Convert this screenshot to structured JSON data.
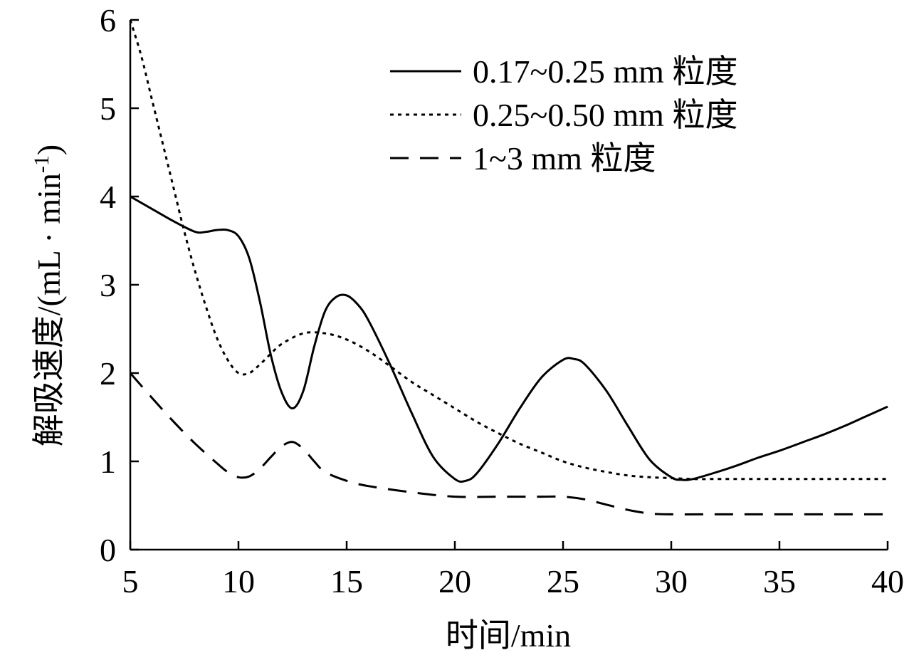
{
  "chart_data": {
    "type": "line",
    "xlabel": "时间/min",
    "ylabel_main": "解吸速度/(mL · min",
    "ylabel_sup": "-1",
    "ylabel_close": ")",
    "xlim": [
      5,
      40
    ],
    "ylim": [
      0,
      6
    ],
    "xticks": [
      5,
      10,
      15,
      20,
      25,
      30,
      35,
      40
    ],
    "yticks": [
      0,
      1,
      2,
      3,
      4,
      5,
      6
    ],
    "grid": false,
    "legend_position": "top-right",
    "series": [
      {
        "name": "0.17~0.25 mm 粒度",
        "style": "solid",
        "x": [
          5,
          6,
          7,
          8,
          8.5,
          9,
          9.5,
          10,
          10.5,
          11,
          11.5,
          12,
          12.5,
          13,
          13.5,
          14,
          14.5,
          15,
          15.5,
          16,
          17,
          18,
          19,
          20,
          20.5,
          21,
          22,
          23,
          24,
          25,
          25.5,
          26,
          27,
          28,
          29,
          30,
          30.5,
          31,
          32,
          33,
          34,
          35,
          36,
          37,
          38,
          39,
          40
        ],
        "y": [
          4.0,
          3.86,
          3.72,
          3.6,
          3.6,
          3.62,
          3.62,
          3.55,
          3.3,
          2.8,
          2.2,
          1.78,
          1.6,
          1.8,
          2.3,
          2.7,
          2.86,
          2.88,
          2.78,
          2.6,
          2.1,
          1.55,
          1.05,
          0.8,
          0.78,
          0.86,
          1.2,
          1.6,
          1.95,
          2.15,
          2.16,
          2.1,
          1.8,
          1.4,
          1.02,
          0.82,
          0.79,
          0.8,
          0.87,
          0.95,
          1.04,
          1.12,
          1.21,
          1.3,
          1.4,
          1.51,
          1.62
        ]
      },
      {
        "name": "0.25~0.50 mm 粒度",
        "style": "dotted",
        "x": [
          5,
          5.5,
          6,
          6.5,
          7,
          7.5,
          8,
          8.5,
          9,
          9.5,
          10,
          10.5,
          11,
          11.5,
          12,
          13,
          14,
          15,
          16,
          17,
          18,
          19,
          20,
          21,
          22,
          23,
          24,
          25,
          26,
          27,
          28,
          29,
          30,
          31,
          32,
          35,
          40
        ],
        "y": [
          6.0,
          5.6,
          5.1,
          4.6,
          4.1,
          3.6,
          3.15,
          2.75,
          2.4,
          2.15,
          2.0,
          2.0,
          2.1,
          2.22,
          2.33,
          2.45,
          2.45,
          2.38,
          2.25,
          2.08,
          1.9,
          1.75,
          1.6,
          1.45,
          1.32,
          1.2,
          1.1,
          1.0,
          0.93,
          0.88,
          0.84,
          0.82,
          0.81,
          0.8,
          0.8,
          0.8,
          0.8
        ]
      },
      {
        "name": "1~3 mm 粒度",
        "style": "dashed",
        "x": [
          5,
          6,
          7,
          8,
          9,
          9.5,
          10,
          10.5,
          11,
          11.5,
          12,
          12.5,
          13,
          13.5,
          14,
          15,
          16,
          18,
          20,
          22,
          24,
          25,
          26,
          27,
          28,
          29,
          30,
          32,
          35,
          40
        ],
        "y": [
          2.0,
          1.72,
          1.45,
          1.2,
          0.98,
          0.88,
          0.82,
          0.83,
          0.92,
          1.05,
          1.17,
          1.22,
          1.14,
          1.0,
          0.88,
          0.78,
          0.72,
          0.65,
          0.6,
          0.6,
          0.6,
          0.6,
          0.57,
          0.51,
          0.45,
          0.41,
          0.4,
          0.4,
          0.4,
          0.4
        ]
      }
    ]
  }
}
